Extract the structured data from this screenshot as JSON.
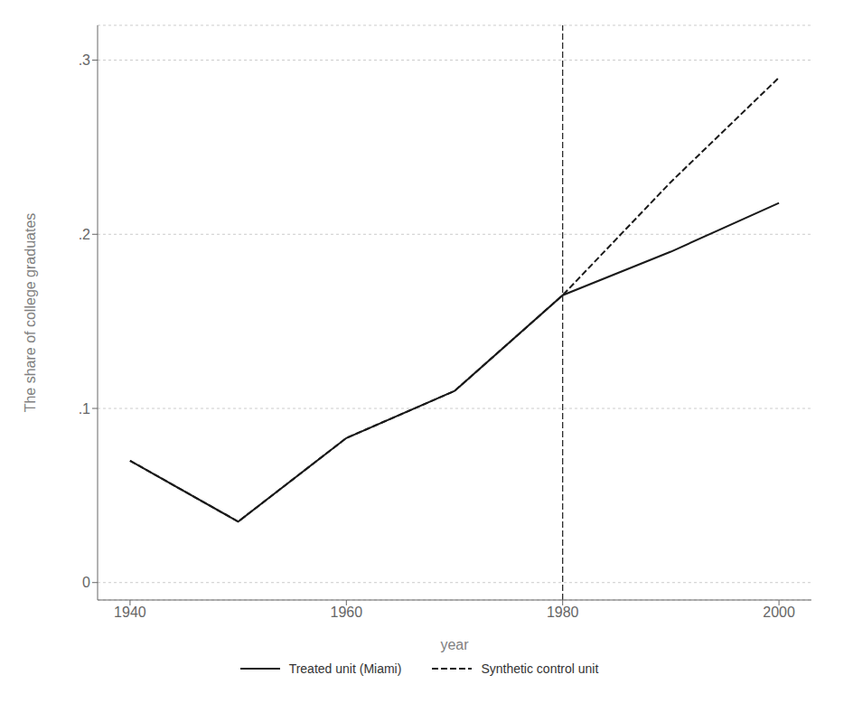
{
  "chart_data": {
    "type": "line",
    "x": [
      1940,
      1950,
      1960,
      1970,
      1980,
      1990,
      2000
    ],
    "series": [
      {
        "name": "Treated unit (Miami)",
        "color": "#1a1a1a",
        "line_style": "solid",
        "values": [
          0.07,
          0.035,
          0.083,
          0.11,
          0.165,
          0.19,
          0.218
        ]
      },
      {
        "name": "Synthetic control unit",
        "color": "#1a1a1a",
        "line_style": "dashed",
        "values": [
          0.07,
          0.035,
          0.083,
          0.11,
          0.165,
          0.23,
          0.29
        ]
      }
    ],
    "vline_x": 1980,
    "xlim": [
      1937,
      2003
    ],
    "ylim": [
      -0.01,
      0.32
    ],
    "xticks": [
      1940,
      1960,
      1980,
      2000
    ],
    "yticks": [
      0,
      {
        "value": 0.1,
        "label": ".1"
      },
      {
        "value": 0.2,
        "label": ".2"
      },
      {
        "value": 0.3,
        "label": ".3"
      }
    ],
    "xlabel": "year",
    "ylabel": "The share of college graduates",
    "grid": "y",
    "legend": "bottom"
  }
}
